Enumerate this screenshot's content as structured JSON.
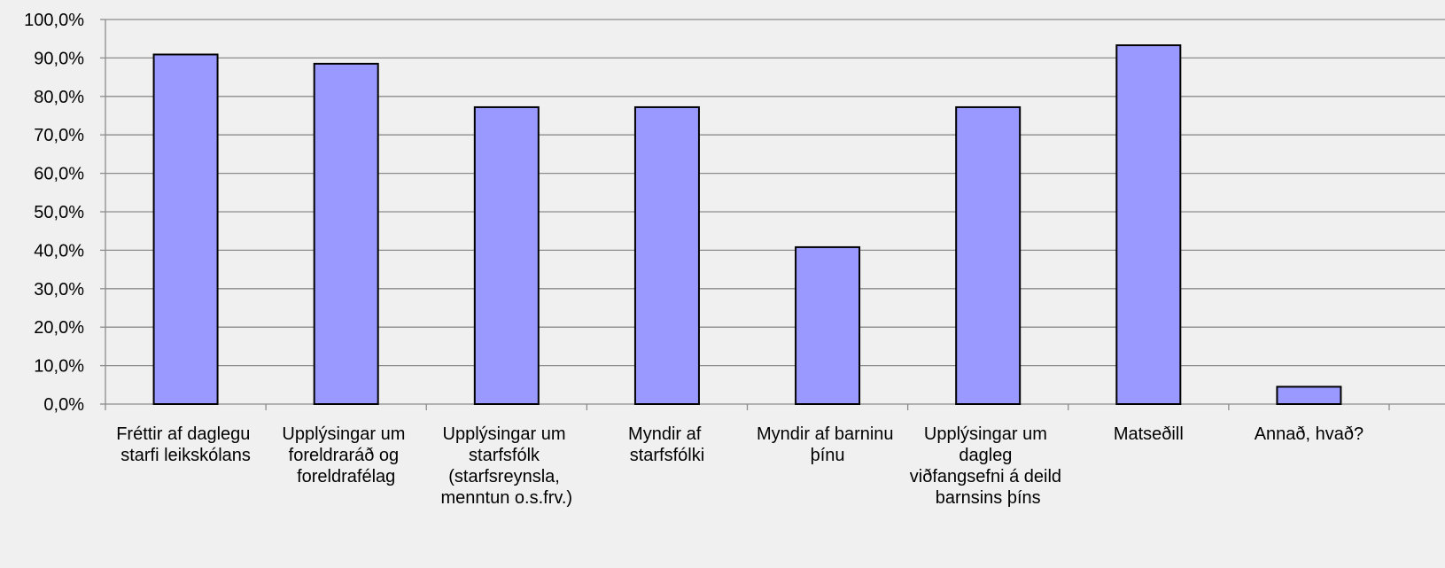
{
  "chart_data": {
    "type": "bar",
    "categories": [
      "Fréttir af daglegu starfi leikskólans",
      "Upplýsingar um foreldraráð og foreldrafélag",
      "Upplýsingar um starfsfólk (starfsreynsla, menntun o.s.frv.)",
      "Myndir af starfsfólki",
      "Myndir af barninu þínu",
      "Upplýsingar um dagleg viðfangsefni á deild barnsins þíns",
      "Matseðill",
      "Annað, hvað?"
    ],
    "values": [
      90.9,
      88.5,
      77.2,
      77.2,
      40.8,
      77.2,
      93.3,
      4.5
    ],
    "color": "#9999ff",
    "ylim": [
      0,
      100
    ],
    "yticks": [
      {
        "value": 0,
        "label": "0,0%"
      },
      {
        "value": 10,
        "label": "10,0%"
      },
      {
        "value": 20,
        "label": "20,0%"
      },
      {
        "value": 30,
        "label": "30,0%"
      },
      {
        "value": 40,
        "label": "40,0%"
      },
      {
        "value": 50,
        "label": "50,0%"
      },
      {
        "value": 60,
        "label": "60,0%"
      },
      {
        "value": 70,
        "label": "70,0%"
      },
      {
        "value": 80,
        "label": "80,0%"
      },
      {
        "value": 90,
        "label": "90,0%"
      },
      {
        "value": 100,
        "label": "100,0%"
      }
    ],
    "grid": true
  }
}
